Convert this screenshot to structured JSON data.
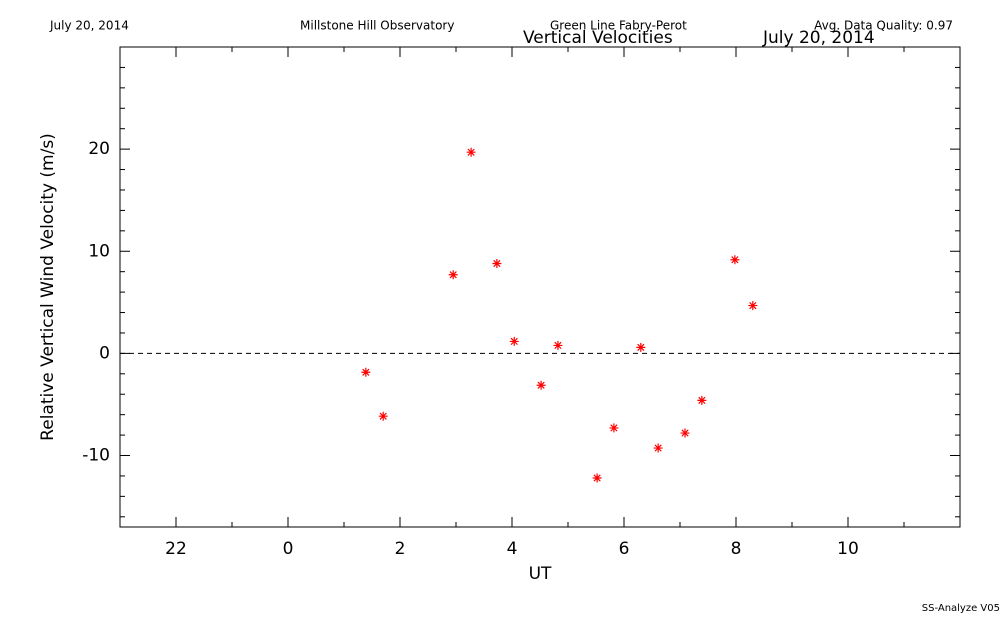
{
  "chart_data": {
    "type": "scatter",
    "header": [
      "July 20, 2014",
      "Millstone Hill Observatory",
      "Green Line Fabry-Perot",
      "Avg. Data Quality: 0.97"
    ],
    "title": "Vertical Velocities",
    "subtitle": "July 20, 2014",
    "xlabel": "UT",
    "ylabel": "Relative Vertical Wind Velocity (m/s)",
    "footer": "SS-Analyze V05",
    "x": [
      1.39,
      1.7,
      2.95,
      3.27,
      3.73,
      4.04,
      4.52,
      4.82,
      5.52,
      5.82,
      6.3,
      6.61,
      7.09,
      7.39,
      7.98,
      8.3
    ],
    "values": [
      -1.85,
      -6.15,
      7.7,
      19.7,
      8.8,
      1.17,
      -3.12,
      0.78,
      -12.2,
      -7.3,
      0.59,
      -9.27,
      -7.8,
      -4.6,
      9.17,
      4.68
    ],
    "color": "#ff0000",
    "xlim": [
      -3,
      12
    ],
    "xticks": [
      {
        "value": -2,
        "label": "22"
      },
      0,
      2,
      4,
      6,
      8,
      10
    ],
    "xminorticks": [
      -3,
      -1,
      1,
      3,
      5,
      7,
      9,
      11
    ],
    "ylim": [
      -17,
      30
    ],
    "yticks": [
      -10,
      0,
      10,
      20
    ],
    "yminorticks": [
      -16,
      -14,
      -12,
      -8,
      -6,
      -4,
      -2,
      2,
      4,
      6,
      8,
      12,
      14,
      16,
      18,
      22,
      24,
      26,
      28
    ],
    "hline": 0
  }
}
